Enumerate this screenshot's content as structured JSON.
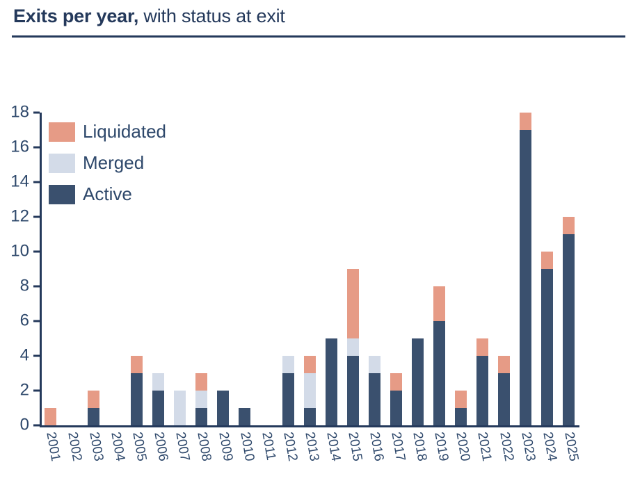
{
  "header": {
    "title_bold": "Exits per year,",
    "title_regular": " with status at exit"
  },
  "colors": {
    "active": "#3A506E",
    "merged": "#D3DBE8",
    "liquidated": "#E69B86",
    "axis": "#24395B",
    "title": "#24395B",
    "text": "#2E486B"
  },
  "legend": {
    "items": [
      {
        "label": "Liquidated",
        "color_key": "liquidated"
      },
      {
        "label": "Merged",
        "color_key": "merged"
      },
      {
        "label": "Active",
        "color_key": "active"
      }
    ]
  },
  "chart_data": {
    "type": "bar",
    "stacked": true,
    "title": "Exits per year, with status at exit",
    "xlabel": "",
    "ylabel": "",
    "categories": [
      "2001",
      "2002",
      "2003",
      "2004",
      "2005",
      "2006",
      "2007",
      "2008",
      "2009",
      "2010",
      "2011",
      "2012",
      "2013",
      "2014",
      "2015",
      "2016",
      "2017",
      "2018",
      "2019",
      "2020",
      "2021",
      "2022",
      "2023",
      "2024",
      "2025"
    ],
    "series": [
      {
        "name": "Liquidated",
        "color_key": "liquidated",
        "values": [
          1,
          0,
          1,
          0,
          1,
          0,
          0,
          1,
          0,
          0,
          0,
          0,
          1,
          0,
          4,
          0,
          1,
          0,
          2,
          1,
          1,
          1,
          1,
          1,
          1
        ]
      },
      {
        "name": "Merged",
        "color_key": "merged",
        "values": [
          0,
          0,
          0,
          0,
          0,
          1,
          2,
          1,
          0,
          0,
          0,
          1,
          2,
          0,
          1,
          1,
          0,
          0,
          0,
          0,
          0,
          0,
          0,
          0,
          0
        ]
      },
      {
        "name": "Active",
        "color_key": "active",
        "values": [
          0,
          0,
          1,
          0,
          3,
          2,
          0,
          1,
          2,
          1,
          0,
          3,
          1,
          5,
          4,
          3,
          2,
          5,
          6,
          1,
          4,
          3,
          17,
          9,
          11
        ]
      }
    ],
    "ylim": [
      0,
      18
    ],
    "yticks": [
      0,
      2,
      4,
      6,
      8,
      10,
      12,
      14,
      16,
      18
    ],
    "grid": false,
    "legend_position": "upper left"
  }
}
